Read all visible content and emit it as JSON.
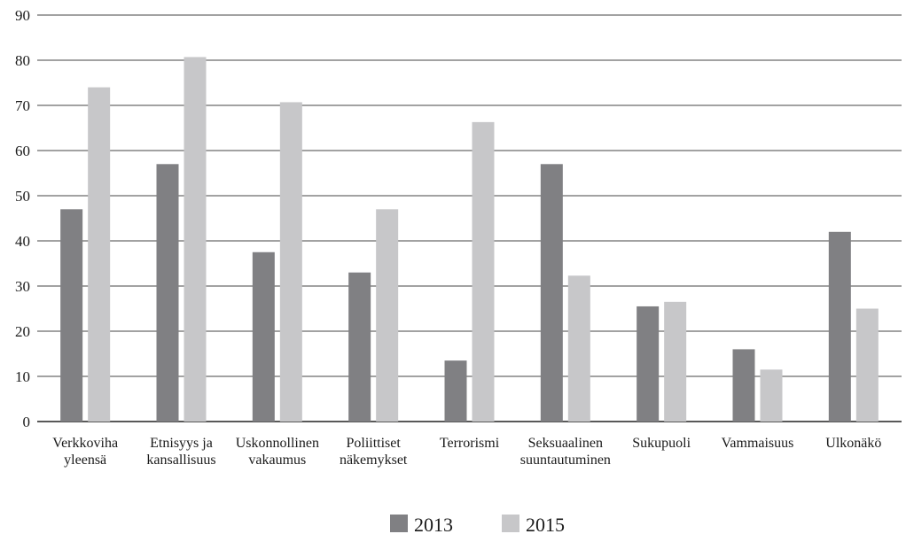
{
  "chart_data": {
    "type": "bar",
    "title": "",
    "xlabel": "",
    "ylabel": "",
    "ylim": [
      0,
      90
    ],
    "yticks": [
      0,
      10,
      20,
      30,
      40,
      50,
      60,
      70,
      80,
      90
    ],
    "grid": true,
    "legend_position": "bottom-center",
    "categories": [
      [
        "Verkkoviha",
        "yleensä"
      ],
      [
        "Etnisyys ja",
        "kansallisuus"
      ],
      [
        "Uskonnollinen",
        "vakaumus"
      ],
      [
        "Poliittiset",
        "näkemykset"
      ],
      [
        "Terrorismi"
      ],
      [
        "Seksuaalinen",
        "suuntautuminen"
      ],
      [
        "Sukupuoli"
      ],
      [
        "Vammaisuus"
      ],
      [
        "Ulkonäkö"
      ]
    ],
    "series": [
      {
        "name": "2013",
        "color": "#808083",
        "values": [
          47,
          57,
          37.5,
          33,
          13.5,
          57,
          25.5,
          16,
          42
        ]
      },
      {
        "name": "2015",
        "color": "#c7c7c9",
        "values": [
          74,
          80.7,
          70.7,
          47,
          66.3,
          32.3,
          26.5,
          11.5,
          25
        ]
      }
    ]
  }
}
